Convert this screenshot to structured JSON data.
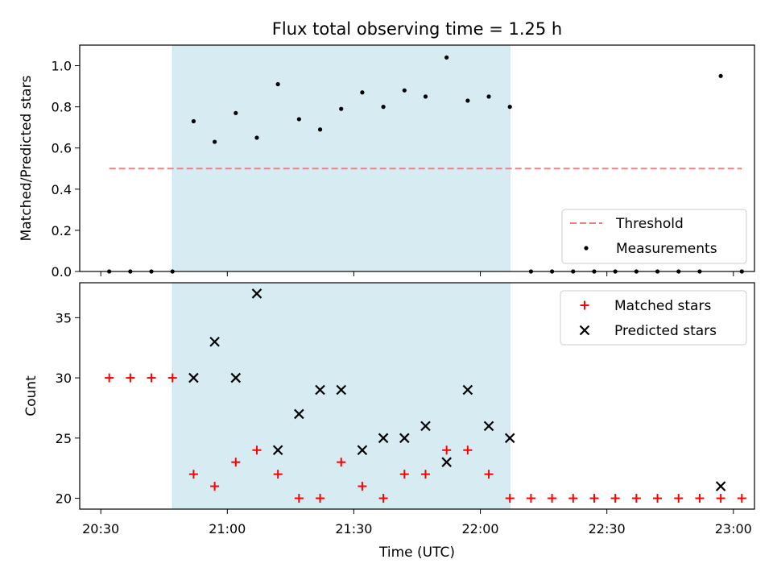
{
  "chart_data": [
    {
      "type": "scatter",
      "title": "Flux total observing time = 1.25 h",
      "xlabel": "",
      "ylabel": "Matched/Predicted stars",
      "ylim": [
        0,
        1.1
      ],
      "yticks": [
        "0.0",
        "0.2",
        "0.4",
        "0.6",
        "0.8",
        "1.0"
      ],
      "xlim_minutes": [
        1225,
        1385
      ],
      "shaded_span_minutes": [
        1247,
        1327
      ],
      "shade_color": "#add8e6",
      "legend_position": "lower-right",
      "threshold": {
        "name": "Threshold",
        "value": 0.5,
        "x_range_minutes": [
          1232,
          1382
        ],
        "color": "#f08080",
        "style": "dashed"
      },
      "series": [
        {
          "name": "Measurements",
          "color": "#000000",
          "marker": "dot",
          "points": [
            [
              1232,
              0.0
            ],
            [
              1237,
              0.0
            ],
            [
              1242,
              0.0
            ],
            [
              1247,
              0.0
            ],
            [
              1252,
              0.73
            ],
            [
              1257,
              0.63
            ],
            [
              1262,
              0.77
            ],
            [
              1267,
              0.65
            ],
            [
              1272,
              0.91
            ],
            [
              1277,
              0.74
            ],
            [
              1282,
              0.69
            ],
            [
              1287,
              0.79
            ],
            [
              1292,
              0.87
            ],
            [
              1297,
              0.8
            ],
            [
              1302,
              0.88
            ],
            [
              1307,
              0.85
            ],
            [
              1312,
              1.04
            ],
            [
              1317,
              0.83
            ],
            [
              1322,
              0.85
            ],
            [
              1327,
              0.8
            ],
            [
              1332,
              0.0
            ],
            [
              1337,
              0.0
            ],
            [
              1342,
              0.0
            ],
            [
              1347,
              0.0
            ],
            [
              1352,
              0.0
            ],
            [
              1357,
              0.0
            ],
            [
              1362,
              0.0
            ],
            [
              1367,
              0.0
            ],
            [
              1372,
              0.0
            ],
            [
              1377,
              0.95
            ],
            [
              1382,
              0.0
            ]
          ]
        }
      ]
    },
    {
      "type": "scatter",
      "title": "",
      "xlabel": "Time (UTC)",
      "ylabel": "Count",
      "ylim": [
        19.1,
        37.9
      ],
      "yticks": [
        "20",
        "25",
        "30",
        "35"
      ],
      "xlim_minutes": [
        1225,
        1385
      ],
      "xticks": [
        "20:30",
        "21:00",
        "21:30",
        "22:00",
        "22:30",
        "23:00"
      ],
      "shaded_span_minutes": [
        1247,
        1327
      ],
      "shade_color": "#add8e6",
      "legend_position": "upper-right",
      "series": [
        {
          "name": "Matched stars",
          "color": "#ff0000",
          "marker": "plus",
          "points": [
            [
              1232,
              30
            ],
            [
              1237,
              30
            ],
            [
              1242,
              30
            ],
            [
              1247,
              30
            ],
            [
              1252,
              22
            ],
            [
              1257,
              21
            ],
            [
              1262,
              23
            ],
            [
              1267,
              24
            ],
            [
              1272,
              22
            ],
            [
              1277,
              20
            ],
            [
              1282,
              20
            ],
            [
              1287,
              23
            ],
            [
              1292,
              21
            ],
            [
              1297,
              20
            ],
            [
              1302,
              22
            ],
            [
              1307,
              22
            ],
            [
              1312,
              24
            ],
            [
              1317,
              24
            ],
            [
              1322,
              22
            ],
            [
              1327,
              20
            ],
            [
              1332,
              20
            ],
            [
              1337,
              20
            ],
            [
              1342,
              20
            ],
            [
              1347,
              20
            ],
            [
              1352,
              20
            ],
            [
              1357,
              20
            ],
            [
              1362,
              20
            ],
            [
              1367,
              20
            ],
            [
              1372,
              20
            ],
            [
              1377,
              20
            ],
            [
              1382,
              20
            ]
          ]
        },
        {
          "name": "Predicted stars",
          "color": "#000000",
          "marker": "x",
          "points": [
            [
              1252,
              30
            ],
            [
              1257,
              33
            ],
            [
              1262,
              30
            ],
            [
              1267,
              37
            ],
            [
              1272,
              24
            ],
            [
              1277,
              27
            ],
            [
              1282,
              29
            ],
            [
              1287,
              29
            ],
            [
              1292,
              24
            ],
            [
              1297,
              25
            ],
            [
              1302,
              25
            ],
            [
              1307,
              26
            ],
            [
              1312,
              23
            ],
            [
              1317,
              29
            ],
            [
              1322,
              26
            ],
            [
              1327,
              25
            ],
            [
              1377,
              21
            ]
          ]
        }
      ]
    }
  ]
}
